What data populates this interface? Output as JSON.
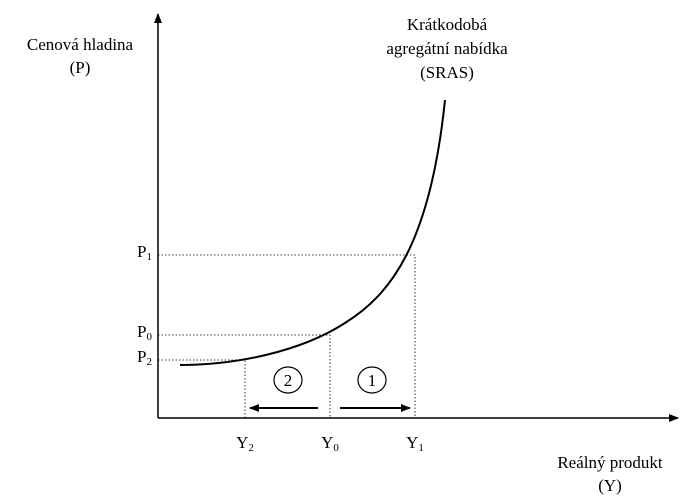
{
  "y_axis_label": [
    "Cenová hladina",
    "(P)"
  ],
  "x_axis_label": [
    "Reálný produkt",
    "(Y)"
  ],
  "curve_label": [
    "Krátkodobá",
    "agregátní nabídka",
    "(SRAS)"
  ],
  "price_levels": [
    {
      "letter": "P",
      "subscript": "1"
    },
    {
      "letter": "P",
      "subscript": "0"
    },
    {
      "letter": "P",
      "subscript": "2"
    }
  ],
  "outputs": [
    {
      "letter": "Y",
      "subscript": "2"
    },
    {
      "letter": "Y",
      "subscript": "0"
    },
    {
      "letter": "Y",
      "subscript": "1"
    }
  ],
  "shifts": [
    "2",
    "1"
  ]
}
